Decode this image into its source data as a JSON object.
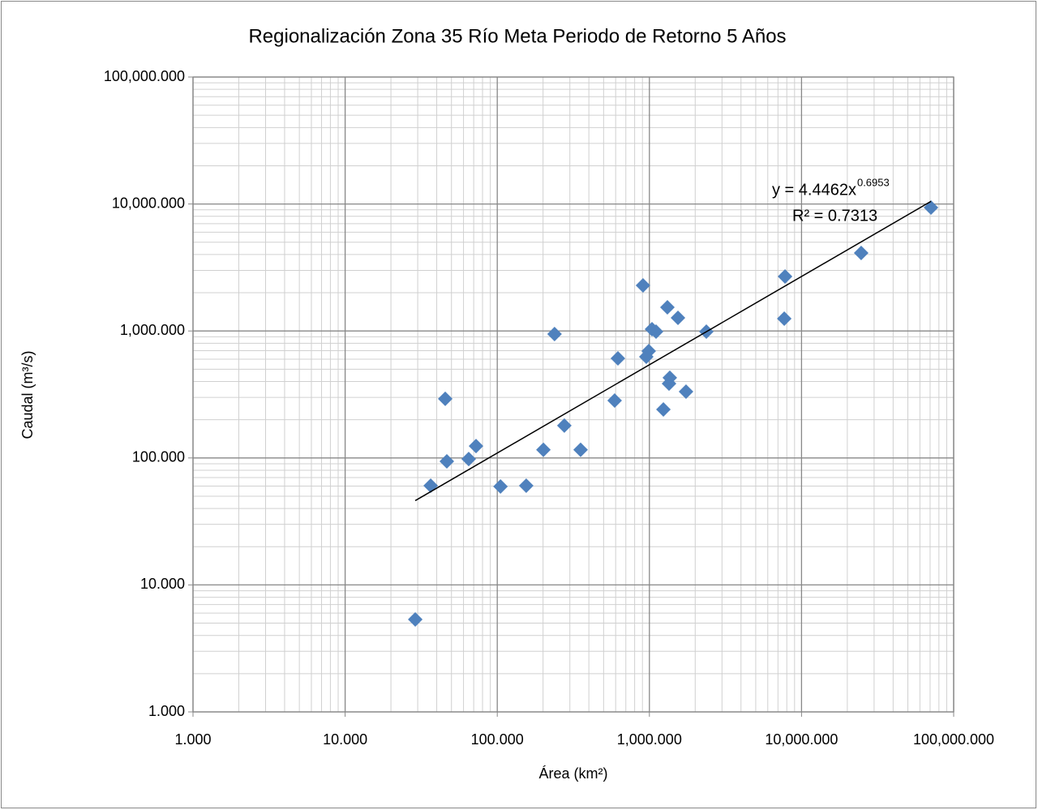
{
  "chart_data": {
    "type": "scatter",
    "title": "Regionalización Zona 35 Río Meta Periodo de Retorno 5 Años",
    "x_label": "Área (km²)",
    "y_label": "Caudal (m³/s)",
    "log_x": true,
    "log_y": true,
    "grid": true,
    "minor_grid": true,
    "xlim": [
      1,
      100000
    ],
    "ylim": [
      1,
      100000
    ],
    "xticks": [
      {
        "value": 1,
        "label": "1.000"
      },
      {
        "value": 10,
        "label": "10.000"
      },
      {
        "value": 100,
        "label": "100.000"
      },
      {
        "value": 1000,
        "label": "1,000.000"
      },
      {
        "value": 10000,
        "label": "10,000.000"
      },
      {
        "value": 100000,
        "label": "100,000.000"
      }
    ],
    "yticks": [
      {
        "value": 1,
        "label": "1.000"
      },
      {
        "value": 10,
        "label": "10.000"
      },
      {
        "value": 100,
        "label": "100.000"
      },
      {
        "value": 1000,
        "label": "1,000.000"
      },
      {
        "value": 10000,
        "label": "10,000.000"
      },
      {
        "value": 100000,
        "label": "100,000.000"
      }
    ],
    "color": "#4f81bd",
    "x": [
      28.9,
      36.5,
      45.5,
      46.6,
      64.9,
      72.5,
      105,
      155,
      201,
      238,
      276,
      353,
      591,
      621,
      908,
      954,
      990,
      1040,
      1106,
      1236,
      1313,
      1346,
      1362,
      1541,
      1741,
      2368,
      7700,
      7790,
      24660,
      70950
    ],
    "values": [
      5.35,
      60.5,
      292,
      94,
      98,
      124,
      59.6,
      60.5,
      116,
      946,
      180,
      116,
      283,
      608,
      2286,
      627,
      695,
      1033,
      988,
      241,
      1535,
      385,
      428,
      1269,
      333,
      988,
      1250,
      2686,
      4113,
      9370
    ],
    "trendline": {
      "a": 4.4462,
      "b": 0.6953,
      "x": [
        28.9,
        70950
      ],
      "color": "#000000",
      "equation": "y = 4.4462x",
      "exponent": "0.6953",
      "r_squared": "R² = 0.7313"
    }
  }
}
